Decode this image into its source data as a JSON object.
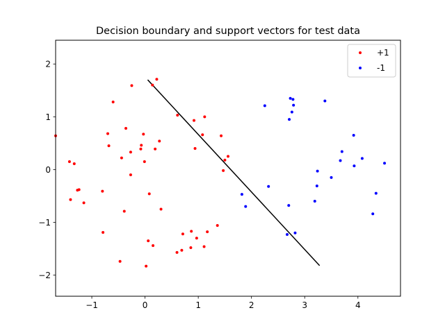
{
  "chart_data": {
    "type": "scatter",
    "title": "Decision boundary and support vectors for test data",
    "xlabel": "",
    "ylabel": "",
    "xlim": [
      -1.68,
      4.8
    ],
    "ylim": [
      -2.4,
      2.45
    ],
    "xticks": [
      -1,
      0,
      1,
      2,
      3,
      4
    ],
    "yticks": [
      -2,
      -1,
      0,
      1,
      2
    ],
    "xtick_labels": [
      "−1",
      "0",
      "1",
      "2",
      "3",
      "4"
    ],
    "ytick_labels": [
      "−2",
      "−1",
      "0",
      "1",
      "2"
    ],
    "grid": false,
    "legend_position": "top-right",
    "series": [
      {
        "name": "+1",
        "color": "#ff0000",
        "points": [
          [
            -1.68,
            0.64
          ],
          [
            -1.42,
            0.15
          ],
          [
            -1.33,
            0.11
          ],
          [
            -1.4,
            -0.57
          ],
          [
            -1.24,
            -0.38
          ],
          [
            -1.27,
            -0.39
          ],
          [
            -1.15,
            -0.63
          ],
          [
            -0.8,
            -0.41
          ],
          [
            -0.79,
            -1.19
          ],
          [
            -0.7,
            0.68
          ],
          [
            -0.68,
            0.45
          ],
          [
            -0.6,
            1.28
          ],
          [
            -0.47,
            -1.74
          ],
          [
            -0.44,
            0.22
          ],
          [
            -0.39,
            -0.79
          ],
          [
            -0.36,
            0.78
          ],
          [
            -0.27,
            0.33
          ],
          [
            -0.27,
            -0.1
          ],
          [
            -0.25,
            1.59
          ],
          [
            -0.08,
            0.39
          ],
          [
            -0.07,
            0.46
          ],
          [
            -0.03,
            0.67
          ],
          [
            -0.01,
            0.15
          ],
          [
            0.02,
            -1.83
          ],
          [
            0.06,
            -1.35
          ],
          [
            0.08,
            -0.46
          ],
          [
            0.14,
            1.6
          ],
          [
            0.15,
            -1.44
          ],
          [
            0.19,
            0.39
          ],
          [
            0.22,
            1.71
          ],
          [
            0.27,
            0.54
          ],
          [
            0.3,
            -0.75
          ],
          [
            0.6,
            -1.57
          ],
          [
            0.61,
            1.03
          ],
          [
            0.69,
            -1.53
          ],
          [
            0.71,
            -1.22
          ],
          [
            0.86,
            -1.48
          ],
          [
            0.87,
            -1.17
          ],
          [
            0.92,
            0.93
          ],
          [
            0.94,
            0.4
          ],
          [
            0.97,
            -1.3
          ],
          [
            1.08,
            0.66
          ],
          [
            1.11,
            -1.46
          ],
          [
            1.12,
            1.0
          ],
          [
            1.17,
            -1.18
          ],
          [
            1.36,
            -1.06
          ],
          [
            1.43,
            0.64
          ],
          [
            1.47,
            -0.02
          ],
          [
            1.5,
            0.18
          ],
          [
            1.56,
            0.25
          ]
        ]
      },
      {
        "name": "-1",
        "color": "#0000ff",
        "points": [
          [
            1.82,
            -0.47
          ],
          [
            1.89,
            -0.7
          ],
          [
            2.25,
            1.21
          ],
          [
            2.32,
            -0.32
          ],
          [
            2.67,
            -1.23
          ],
          [
            2.7,
            -0.68
          ],
          [
            2.71,
            0.95
          ],
          [
            2.73,
            1.35
          ],
          [
            2.76,
            1.09
          ],
          [
            2.78,
            1.33
          ],
          [
            2.79,
            1.22
          ],
          [
            2.82,
            -1.2
          ],
          [
            3.19,
            -0.6
          ],
          [
            3.23,
            -0.31
          ],
          [
            3.24,
            -0.03
          ],
          [
            3.38,
            1.3
          ],
          [
            3.5,
            -0.15
          ],
          [
            3.67,
            0.17
          ],
          [
            3.7,
            0.34
          ],
          [
            3.92,
            0.65
          ],
          [
            3.93,
            0.07
          ],
          [
            4.08,
            0.21
          ],
          [
            4.28,
            -0.84
          ],
          [
            4.34,
            -0.45
          ],
          [
            4.5,
            0.12
          ]
        ]
      }
    ],
    "decision_boundary": {
      "x": [
        0.05,
        3.28
      ],
      "y": [
        1.7,
        -1.82
      ],
      "color": "#000000"
    }
  }
}
